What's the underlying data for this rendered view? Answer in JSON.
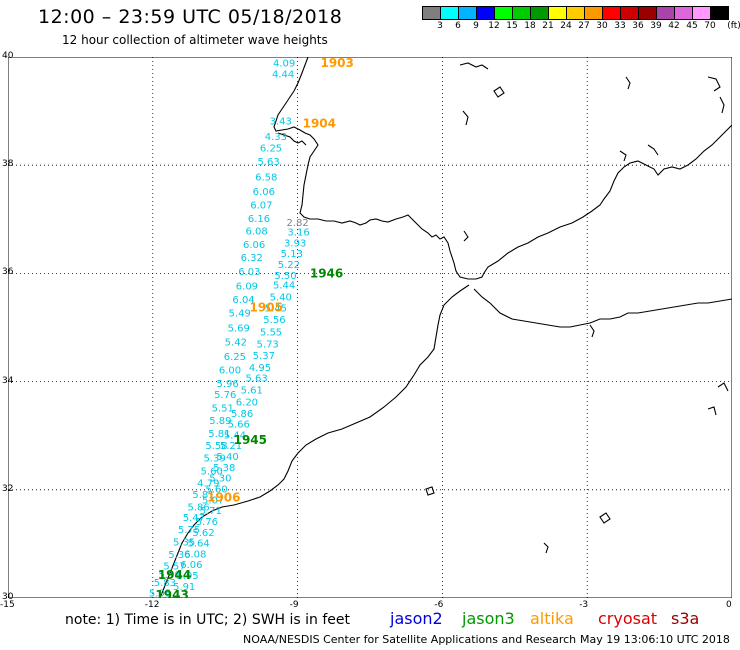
{
  "title": "12:00 – 23:59 UTC 05/18/2018",
  "subtitle": "12 hour collection of altimeter wave heights",
  "colorbar": {
    "colors": [
      "#7f7f7f",
      "#00ffff",
      "#00b4ff",
      "#0000ff",
      "#00ff00",
      "#00cc00",
      "#009900",
      "#ffff00",
      "#ffcc00",
      "#ff9900",
      "#ff0000",
      "#cc0000",
      "#990000",
      "#aa44aa",
      "#dd66dd",
      "#ff99ff",
      "#000000"
    ],
    "labels": [
      "3",
      "6",
      "9",
      "12",
      "15",
      "18",
      "21",
      "24",
      "27",
      "30",
      "33",
      "36",
      "39",
      "42",
      "45",
      "70",
      "(ft)"
    ]
  },
  "map": {
    "lon_range": [
      -15,
      0
    ],
    "lat_range": [
      30,
      40
    ],
    "lat_ticks": [
      "40",
      "38",
      "36",
      "34",
      "32",
      "30"
    ],
    "lon_ticks": [
      "-15",
      "-12",
      "-9",
      "-6",
      "-3",
      "0"
    ],
    "grid": "dotted",
    "land_outline_color": "#000000"
  },
  "track": {
    "color": "#00c8e6",
    "points": [
      {
        "lon": -9.28,
        "lat": 39.82,
        "v": "4.09"
      },
      {
        "lon": -9.3,
        "lat": 39.62,
        "v": "4.44"
      },
      {
        "lon": -9.35,
        "lat": 38.75,
        "v": "3.43"
      },
      {
        "lon": -9.45,
        "lat": 38.47,
        "v": "4.33"
      },
      {
        "lon": -9.55,
        "lat": 38.25,
        "v": "6.25"
      },
      {
        "lon": -9.6,
        "lat": 38.0,
        "v": "5.63"
      },
      {
        "lon": -9.65,
        "lat": 37.72,
        "v": "6.58"
      },
      {
        "lon": -9.7,
        "lat": 37.45,
        "v": "6.06"
      },
      {
        "lon": -9.75,
        "lat": 37.2,
        "v": "6.07"
      },
      {
        "lon": -9.8,
        "lat": 36.95,
        "v": "6.16"
      },
      {
        "lon": -9.85,
        "lat": 36.72,
        "v": "6.08"
      },
      {
        "lon": -9.9,
        "lat": 36.47,
        "v": "6.06"
      },
      {
        "lon": -9.95,
        "lat": 36.23,
        "v": "6.32"
      },
      {
        "lon": -10.0,
        "lat": 35.97,
        "v": "6.03"
      },
      {
        "lon": -10.05,
        "lat": 35.7,
        "v": "6.09"
      },
      {
        "lon": -10.12,
        "lat": 35.45,
        "v": "6.04"
      },
      {
        "lon": -10.2,
        "lat": 35.2,
        "v": "5.49"
      },
      {
        "lon": -10.22,
        "lat": 34.93,
        "v": "5.69"
      },
      {
        "lon": -10.28,
        "lat": 34.67,
        "v": "5.42"
      },
      {
        "lon": -10.3,
        "lat": 34.4,
        "v": "6.25"
      },
      {
        "lon": -10.4,
        "lat": 34.15,
        "v": "6.00"
      },
      {
        "lon": -10.45,
        "lat": 33.9,
        "v": "5.96"
      },
      {
        "lon": -10.5,
        "lat": 33.7,
        "v": "5.76"
      },
      {
        "lon": -10.55,
        "lat": 33.45,
        "v": "5.51"
      },
      {
        "lon": -10.6,
        "lat": 33.22,
        "v": "5.89"
      },
      {
        "lon": -10.62,
        "lat": 32.98,
        "v": "5.81"
      },
      {
        "lon": -10.68,
        "lat": 32.75,
        "v": "5.58"
      },
      {
        "lon": -10.72,
        "lat": 32.52,
        "v": "5.39"
      },
      {
        "lon": -10.78,
        "lat": 32.28,
        "v": "5.60"
      },
      {
        "lon": -10.85,
        "lat": 32.06,
        "v": "4.79"
      },
      {
        "lon": -10.95,
        "lat": 31.85,
        "v": "5.81"
      },
      {
        "lon": -11.05,
        "lat": 31.62,
        "v": "5.86"
      },
      {
        "lon": -11.15,
        "lat": 31.42,
        "v": "5.47"
      },
      {
        "lon": -11.25,
        "lat": 31.2,
        "v": "5.75"
      },
      {
        "lon": -11.35,
        "lat": 30.97,
        "v": "5.35"
      },
      {
        "lon": -11.45,
        "lat": 30.74,
        "v": "5.36"
      },
      {
        "lon": -11.55,
        "lat": 30.53,
        "v": "5.57"
      },
      {
        "lon": -11.65,
        "lat": 30.37,
        "v": "5.90"
      },
      {
        "lon": -11.75,
        "lat": 30.22,
        "v": "5.83"
      },
      {
        "lon": -11.85,
        "lat": 30.03,
        "v": "5.95"
      }
    ],
    "points_right": [
      {
        "lon": -9.0,
        "lat": 36.88,
        "v": "2.82"
      },
      {
        "lon": -8.98,
        "lat": 36.7,
        "v": "3.16"
      },
      {
        "lon": -9.05,
        "lat": 36.5,
        "v": "3.93"
      },
      {
        "lon": -9.12,
        "lat": 36.3,
        "v": "5.13"
      },
      {
        "lon": -9.18,
        "lat": 36.1,
        "v": "5.22"
      },
      {
        "lon": -9.25,
        "lat": 35.9,
        "v": "5.50"
      },
      {
        "lon": -9.28,
        "lat": 35.72,
        "v": "5.44"
      },
      {
        "lon": -9.35,
        "lat": 35.5,
        "v": "5.40"
      },
      {
        "lon": -9.45,
        "lat": 35.3,
        "v": "5.45"
      },
      {
        "lon": -9.48,
        "lat": 35.08,
        "v": "5.56"
      },
      {
        "lon": -9.55,
        "lat": 34.85,
        "v": "5.55"
      },
      {
        "lon": -9.62,
        "lat": 34.63,
        "v": "5.73"
      },
      {
        "lon": -9.7,
        "lat": 34.42,
        "v": "5.37"
      },
      {
        "lon": -9.78,
        "lat": 34.2,
        "v": "4.95"
      },
      {
        "lon": -9.85,
        "lat": 34.0,
        "v": "5.63"
      },
      {
        "lon": -9.95,
        "lat": 33.78,
        "v": "5.61"
      },
      {
        "lon": -10.05,
        "lat": 33.56,
        "v": "6.20"
      },
      {
        "lon": -10.15,
        "lat": 33.35,
        "v": "5.86"
      },
      {
        "lon": -10.22,
        "lat": 33.15,
        "v": "5.66"
      },
      {
        "lon": -10.3,
        "lat": 32.95,
        "v": "5.44"
      },
      {
        "lon": -10.38,
        "lat": 32.75,
        "v": "5.21"
      },
      {
        "lon": -10.45,
        "lat": 32.55,
        "v": "5.40"
      },
      {
        "lon": -10.52,
        "lat": 32.35,
        "v": "5.38"
      },
      {
        "lon": -10.6,
        "lat": 32.15,
        "v": "5.30"
      },
      {
        "lon": -10.68,
        "lat": 31.95,
        "v": "5.60"
      },
      {
        "lon": -10.75,
        "lat": 31.75,
        "v": "5.07"
      },
      {
        "lon": -10.8,
        "lat": 31.55,
        "v": "5.71"
      },
      {
        "lon": -10.88,
        "lat": 31.35,
        "v": "5.76"
      },
      {
        "lon": -10.95,
        "lat": 31.15,
        "v": "5.62"
      },
      {
        "lon": -11.05,
        "lat": 30.95,
        "v": "5.64"
      },
      {
        "lon": -11.12,
        "lat": 30.75,
        "v": "6.08"
      },
      {
        "lon": -11.2,
        "lat": 30.55,
        "v": "6.06"
      },
      {
        "lon": -11.28,
        "lat": 30.35,
        "v": "5.95"
      },
      {
        "lon": -11.35,
        "lat": 30.15,
        "v": "5.91"
      }
    ]
  },
  "pass_times": [
    {
      "label": "1903",
      "lon": -8.18,
      "lat": 39.82,
      "color": "#ff9900"
    },
    {
      "label": "1904",
      "lon": -8.55,
      "lat": 38.7,
      "color": "#ff9900"
    },
    {
      "label": "1946",
      "lon": -8.4,
      "lat": 35.92,
      "color": "#008800"
    },
    {
      "label": "1905",
      "lon": -9.65,
      "lat": 35.3,
      "color": "#ff9900"
    },
    {
      "label": "1945",
      "lon": -9.98,
      "lat": 32.85,
      "color": "#008800"
    },
    {
      "label": "1906",
      "lon": -10.53,
      "lat": 31.78,
      "color": "#ff9900"
    },
    {
      "label": "1944",
      "lon": -11.55,
      "lat": 30.35,
      "color": "#008800"
    },
    {
      "label": "1943",
      "lon": -11.6,
      "lat": 29.98,
      "color": "#008800"
    }
  ],
  "note": "note: 1) Time is in UTC; 2) SWH is in feet",
  "satellites": [
    {
      "name": "jason2",
      "color": "#0000dd"
    },
    {
      "name": "jason3",
      "color": "#009900"
    },
    {
      "name": "altika",
      "color": "#ff9900"
    },
    {
      "name": "cryosat",
      "color": "#dd0000"
    },
    {
      "name": "s3a",
      "color": "#990000"
    }
  ],
  "credit": "NOAA/NESDIS Center for Satellite Applications and Research",
  "timestamp": "May 19 13:06:10 UTC 2018"
}
